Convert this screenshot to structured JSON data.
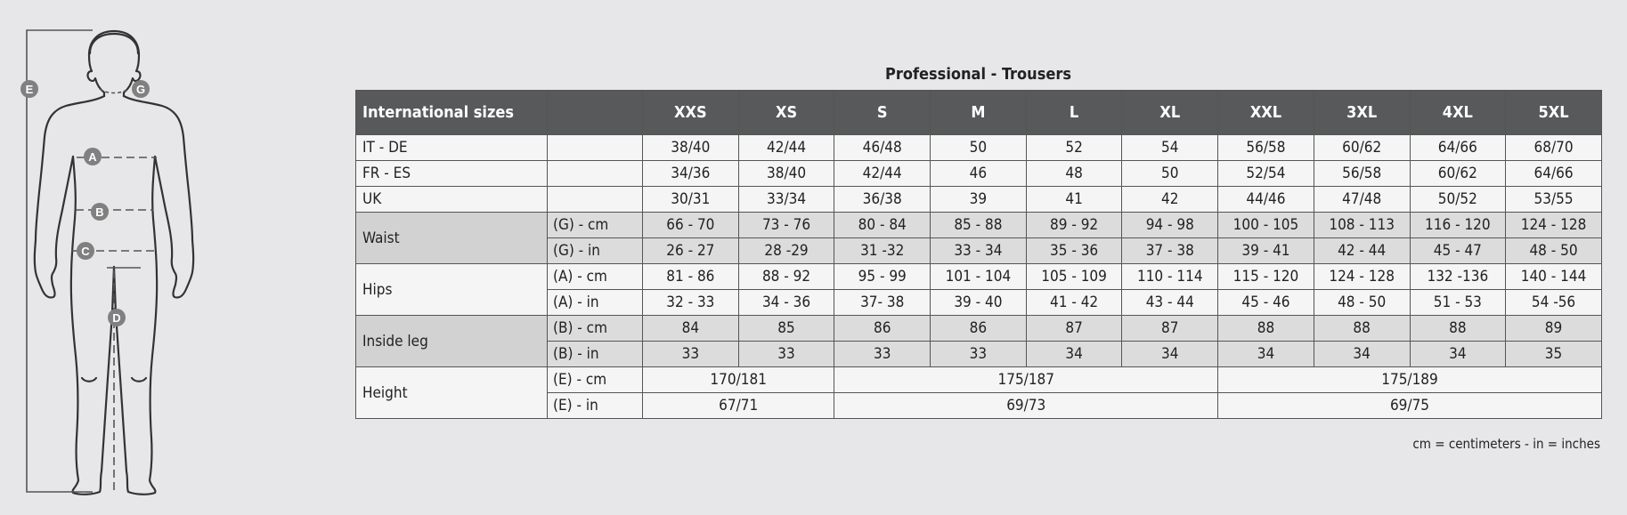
{
  "title": "Professional - Trousers",
  "header": {
    "intl_label": "International sizes",
    "sizes": [
      "XXS",
      "XS",
      "S",
      "M",
      "L",
      "XL",
      "XXL",
      "3XL",
      "4XL",
      "5XL"
    ]
  },
  "rows": {
    "it_de": {
      "label": "IT - DE",
      "values": [
        "38/40",
        "42/44",
        "46/48",
        "50",
        "52",
        "54",
        "56/58",
        "60/62",
        "64/66",
        "68/70"
      ]
    },
    "fr_es": {
      "label": "FR - ES",
      "values": [
        "34/36",
        "38/40",
        "42/44",
        "46",
        "48",
        "50",
        "52/54",
        "56/58",
        "60/62",
        "64/66"
      ]
    },
    "uk": {
      "label": "UK",
      "values": [
        "30/31",
        "33/34",
        "36/38",
        "39",
        "41",
        "42",
        "44/46",
        "47/48",
        "50/52",
        "53/55"
      ]
    }
  },
  "waist": {
    "label": "Waist",
    "cm": {
      "unit": "(G) - cm",
      "values": [
        "66 - 70",
        "73 - 76",
        "80 - 84",
        "85 - 88",
        "89 - 92",
        "94 - 98",
        "100 - 105",
        "108 - 113",
        "116 - 120",
        "124 - 128"
      ]
    },
    "in": {
      "unit": "(G)  - in",
      "values": [
        "26 - 27",
        "28 -29",
        "31 -32",
        "33 - 34",
        "35 - 36",
        "37 - 38",
        "39 - 41",
        "42 - 44",
        "45 - 47",
        "48 - 50"
      ]
    }
  },
  "hips": {
    "label": "Hips",
    "cm": {
      "unit": "(A) - cm",
      "values": [
        "81 - 86",
        "88 - 92",
        "95 - 99",
        "101 - 104",
        "105 - 109",
        "110 - 114",
        "115 - 120",
        "124 - 128",
        "132 -136",
        "140 - 144"
      ]
    },
    "in": {
      "unit": "(A) - in",
      "values": [
        "32 - 33",
        "34 - 36",
        "37- 38",
        "39 - 40",
        "41 - 42",
        "43 - 44",
        "45 - 46",
        "48 - 50",
        "51 - 53",
        "54 -56"
      ]
    }
  },
  "inside_leg": {
    "label": "Inside leg",
    "cm": {
      "unit": "(B) - cm",
      "values": [
        "84",
        "85",
        "86",
        "86",
        "87",
        "87",
        "88",
        "88",
        "88",
        "89"
      ]
    },
    "in": {
      "unit": "(B) - in",
      "values": [
        "33",
        "33",
        "33",
        "33",
        "34",
        "34",
        "34",
        "34",
        "34",
        "35"
      ]
    }
  },
  "height": {
    "label": "Height",
    "cm": {
      "unit": "(E) - cm",
      "values": [
        "170/181",
        "175/187",
        "175/189"
      ]
    },
    "in": {
      "unit": "(E) - in",
      "values": [
        "67/71",
        "69/73",
        "69/75"
      ]
    }
  },
  "note": "cm = centimeters - in = inches",
  "figure": {
    "markers": [
      "E",
      "G",
      "A",
      "B",
      "C",
      "D"
    ],
    "marker_color": "#808080",
    "line_color": "#333333"
  }
}
